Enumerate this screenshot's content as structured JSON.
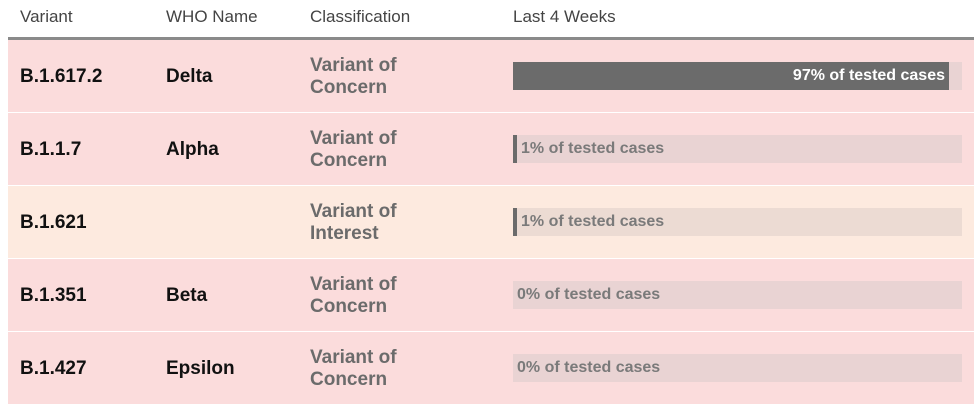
{
  "header": {
    "variant": "Variant",
    "who_name": "WHO Name",
    "classification": "Classification",
    "last_4_weeks": "Last 4 Weeks"
  },
  "rows": [
    {
      "variant": "B.1.617.2",
      "who_name": "Delta",
      "classification_line1": "Variant of",
      "classification_line2": "Concern",
      "kind": "concern",
      "percent": 97,
      "bar_label": "97% of tested cases"
    },
    {
      "variant": "B.1.1.7",
      "who_name": "Alpha",
      "classification_line1": "Variant of",
      "classification_line2": "Concern",
      "kind": "concern",
      "percent": 1,
      "bar_label": "1% of tested cases"
    },
    {
      "variant": "B.1.621",
      "who_name": "",
      "classification_line1": "Variant of",
      "classification_line2": "Interest",
      "kind": "interest",
      "percent": 1,
      "bar_label": "1% of tested cases"
    },
    {
      "variant": "B.1.351",
      "who_name": "Beta",
      "classification_line1": "Variant of",
      "classification_line2": "Concern",
      "kind": "concern",
      "percent": 0,
      "bar_label": "0% of tested cases"
    },
    {
      "variant": "B.1.427",
      "who_name": "Epsilon",
      "classification_line1": "Variant of",
      "classification_line2": "Concern",
      "kind": "concern",
      "percent": 0,
      "bar_label": "0% of tested cases"
    }
  ],
  "colors": {
    "concern_row": "#fbdcdc",
    "interest_row": "#fdeadf",
    "bar_fill": "#6b6b6b",
    "bar_track": "#e9d3d3"
  },
  "chart_data": {
    "type": "bar",
    "categories": [
      "B.1.617.2",
      "B.1.1.7",
      "B.1.621",
      "B.1.351",
      "B.1.427"
    ],
    "values": [
      97,
      1,
      1,
      0,
      0
    ],
    "title": "",
    "xlabel": "Last 4 Weeks",
    "ylabel": "",
    "xlim": [
      0,
      100
    ]
  }
}
